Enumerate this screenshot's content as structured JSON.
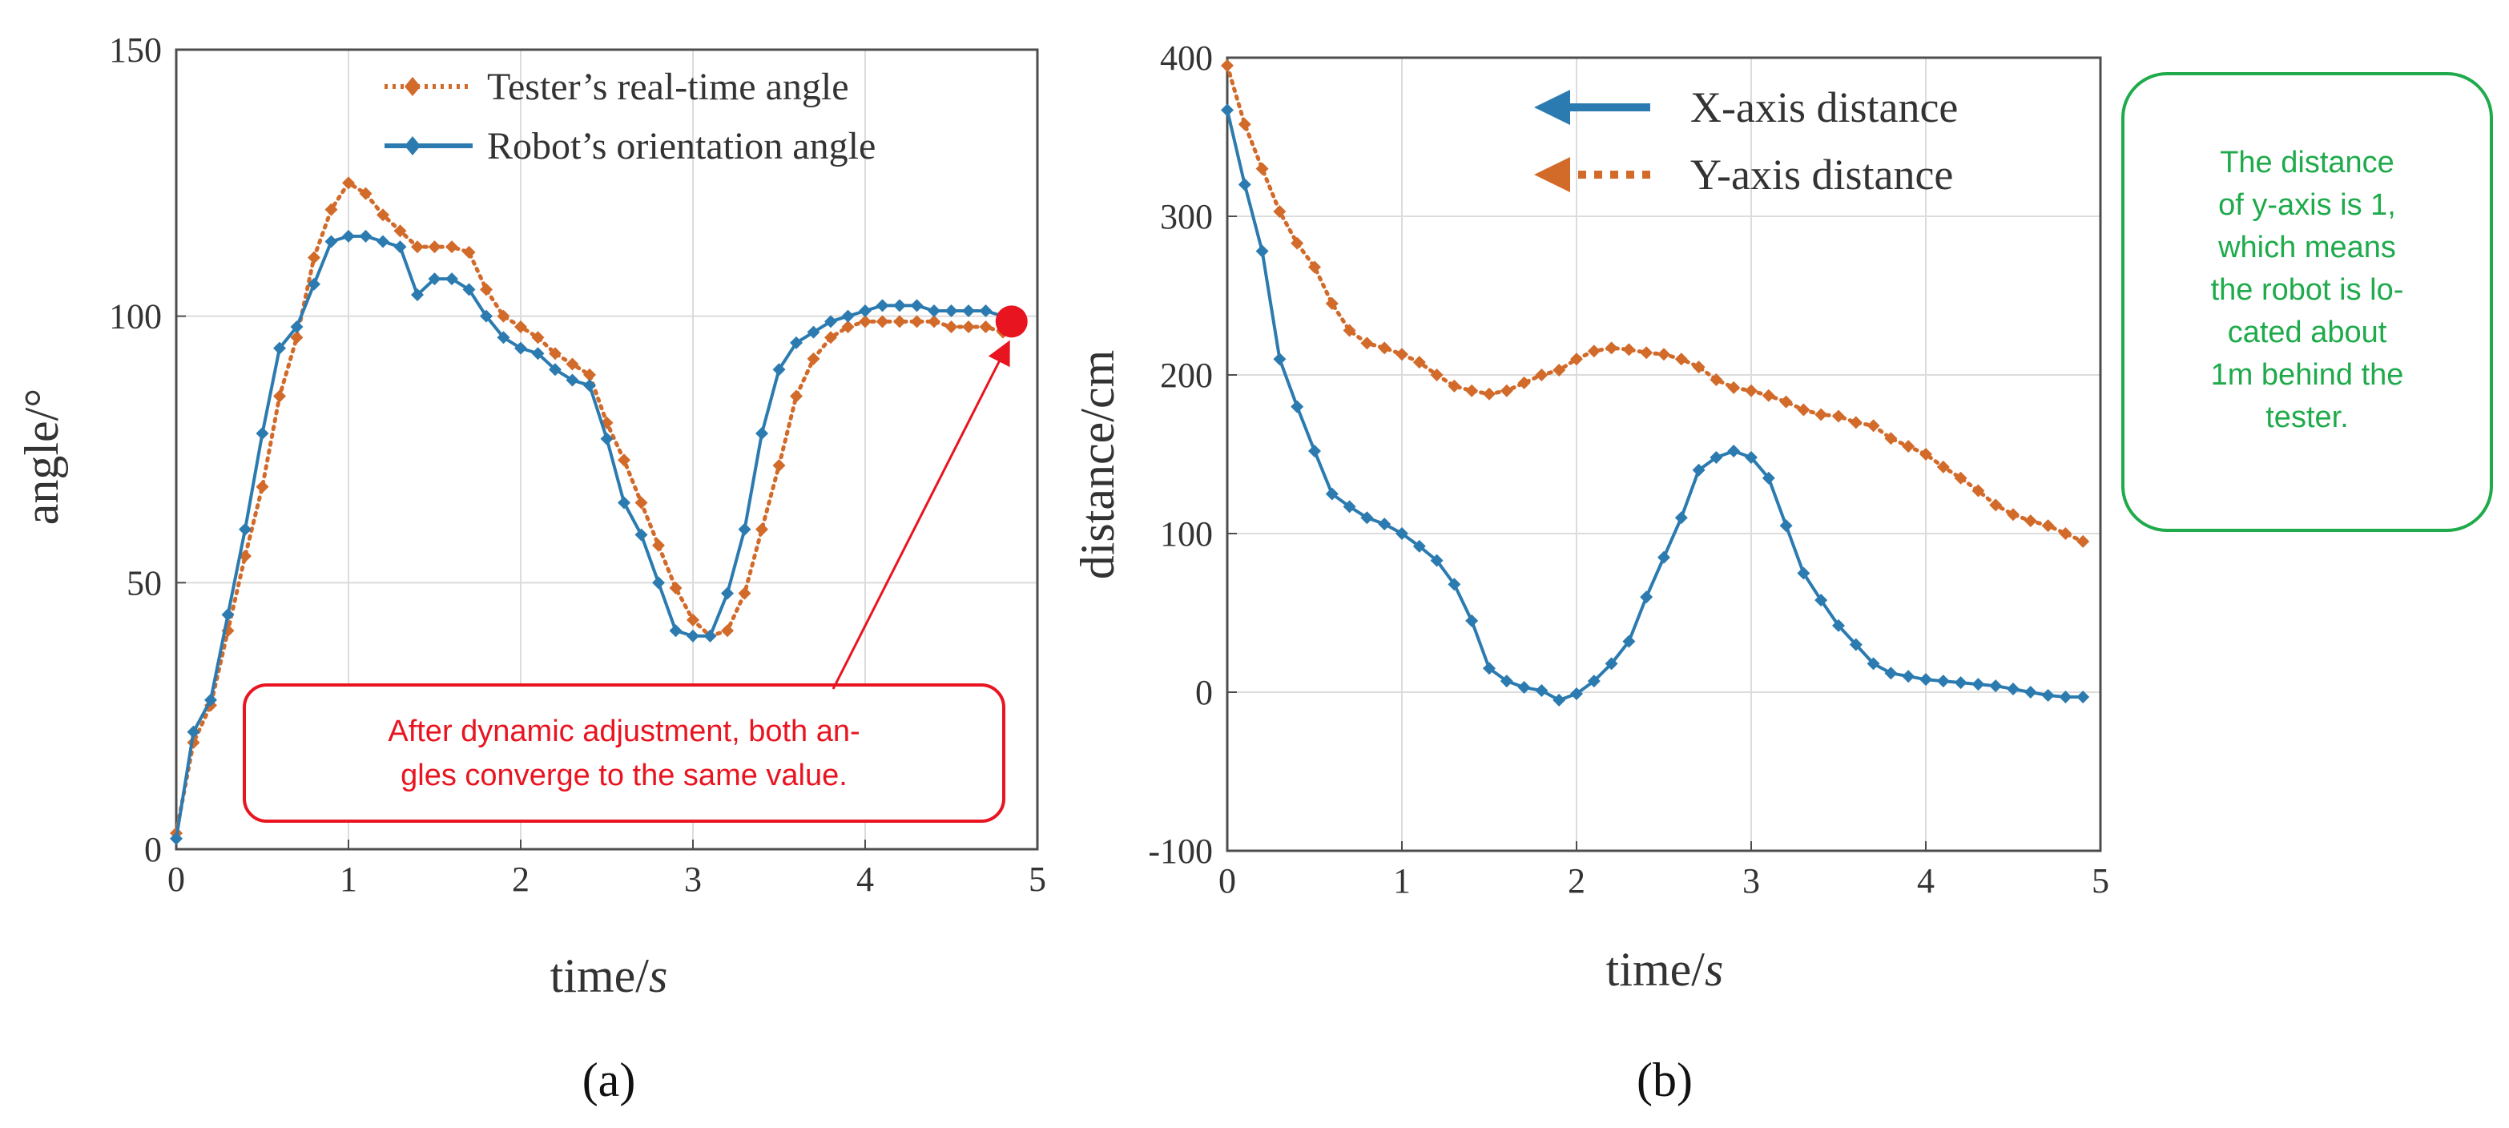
{
  "figure": {
    "panel_a_label": "(a)",
    "panel_b_label": "(b)",
    "annotation_a": {
      "lines": [
        "After dynamic adjustment, both an-",
        "gles converge to the same value."
      ],
      "color": "#e8141f"
    },
    "annotation_b": {
      "lines": [
        "The distance",
        "of y-axis is 1,",
        "which means",
        "the robot is lo-",
        "cated about",
        "1m behind the",
        "tester."
      ],
      "color": "#1faa4b"
    }
  },
  "chart_data": [
    {
      "type": "line",
      "title": "",
      "xlabel_main": "time/",
      "xlabel_italic": "s",
      "ylabel": "angle/°",
      "xlim": [
        0,
        5
      ],
      "ylim": [
        0,
        150
      ],
      "xticks": [
        "0",
        "1",
        "2",
        "3",
        "4",
        "5"
      ],
      "yticks": [
        "0",
        "50",
        "100",
        "150"
      ],
      "grid": true,
      "legend_position": "top-right",
      "series": [
        {
          "name": "Tester’s real-time angle",
          "style": "dotted",
          "marker": "diamond",
          "color": "#d26a2a",
          "x": [
            0,
            0.1,
            0.2,
            0.3,
            0.4,
            0.5,
            0.6,
            0.7,
            0.8,
            0.9,
            1.0,
            1.1,
            1.2,
            1.3,
            1.4,
            1.5,
            1.6,
            1.7,
            1.8,
            1.9,
            2.0,
            2.1,
            2.2,
            2.3,
            2.4,
            2.5,
            2.6,
            2.7,
            2.8,
            2.9,
            3.0,
            3.1,
            3.2,
            3.3,
            3.4,
            3.5,
            3.6,
            3.7,
            3.8,
            3.9,
            4.0,
            4.1,
            4.2,
            4.3,
            4.4,
            4.5,
            4.6,
            4.7,
            4.8
          ],
          "y": [
            3,
            20,
            27,
            41,
            55,
            68,
            85,
            96,
            111,
            120,
            125,
            123,
            119,
            116,
            113,
            113,
            113,
            112,
            105,
            100,
            98,
            96,
            93,
            91,
            89,
            80,
            73,
            65,
            57,
            49,
            43,
            40,
            41,
            48,
            60,
            72,
            85,
            92,
            96,
            98,
            99,
            99,
            99,
            99,
            99,
            98,
            98,
            98,
            97
          ]
        },
        {
          "name": "Robot’s orientation angle",
          "style": "solid",
          "marker": "diamond",
          "color": "#2b7bb0",
          "x": [
            0,
            0.1,
            0.2,
            0.3,
            0.4,
            0.5,
            0.6,
            0.7,
            0.8,
            0.9,
            1.0,
            1.1,
            1.2,
            1.3,
            1.4,
            1.5,
            1.6,
            1.7,
            1.8,
            1.9,
            2.0,
            2.1,
            2.2,
            2.3,
            2.4,
            2.5,
            2.6,
            2.7,
            2.8,
            2.9,
            3.0,
            3.1,
            3.2,
            3.3,
            3.4,
            3.5,
            3.6,
            3.7,
            3.8,
            3.9,
            4.0,
            4.1,
            4.2,
            4.3,
            4.4,
            4.5,
            4.6,
            4.7,
            4.8
          ],
          "y": [
            2,
            22,
            28,
            44,
            60,
            78,
            94,
            98,
            106,
            114,
            115,
            115,
            114,
            113,
            104,
            107,
            107,
            105,
            100,
            96,
            94,
            93,
            90,
            88,
            87,
            77,
            65,
            59,
            50,
            41,
            40,
            40,
            48,
            60,
            78,
            90,
            95,
            97,
            99,
            100,
            101,
            102,
            102,
            102,
            101,
            101,
            101,
            101,
            100
          ]
        }
      ],
      "highlight_point": {
        "x": 4.85,
        "y": 99,
        "color": "#e8141f"
      }
    },
    {
      "type": "line",
      "title": "",
      "xlabel_main": "time/",
      "xlabel_italic": "s",
      "ylabel": "distance/cm",
      "xlim": [
        0,
        5
      ],
      "ylim": [
        -100,
        400
      ],
      "xticks": [
        "0",
        "1",
        "2",
        "3",
        "4",
        "5"
      ],
      "yticks": [
        "-100",
        "0",
        "100",
        "200",
        "300",
        "400"
      ],
      "grid": true,
      "legend_position": "top-right",
      "series": [
        {
          "name": "X-axis distance",
          "style": "solid",
          "marker": "diamond",
          "color": "#2b7bb0",
          "x": [
            0,
            0.1,
            0.2,
            0.3,
            0.4,
            0.5,
            0.6,
            0.7,
            0.8,
            0.9,
            1.0,
            1.1,
            1.2,
            1.3,
            1.4,
            1.5,
            1.6,
            1.7,
            1.8,
            1.9,
            2.0,
            2.1,
            2.2,
            2.3,
            2.4,
            2.5,
            2.6,
            2.7,
            2.8,
            2.9,
            3.0,
            3.1,
            3.2,
            3.3,
            3.4,
            3.5,
            3.6,
            3.7,
            3.8,
            3.9,
            4.0,
            4.1,
            4.2,
            4.3,
            4.4,
            4.5,
            4.6,
            4.7,
            4.8,
            4.9
          ],
          "y": [
            367,
            320,
            278,
            210,
            180,
            152,
            125,
            117,
            110,
            106,
            100,
            92,
            83,
            68,
            45,
            15,
            7,
            3,
            1,
            -5,
            -1,
            7,
            18,
            32,
            60,
            85,
            110,
            140,
            148,
            152,
            148,
            135,
            105,
            75,
            58,
            42,
            30,
            18,
            12,
            10,
            8,
            7,
            6,
            5,
            4,
            2,
            0,
            -2,
            -3,
            -3
          ]
        },
        {
          "name": "Y-axis distance",
          "style": "dotted",
          "marker": "diamond",
          "color": "#d26a2a",
          "x": [
            0,
            0.1,
            0.2,
            0.3,
            0.4,
            0.5,
            0.6,
            0.7,
            0.8,
            0.9,
            1.0,
            1.1,
            1.2,
            1.3,
            1.4,
            1.5,
            1.6,
            1.7,
            1.8,
            1.9,
            2.0,
            2.1,
            2.2,
            2.3,
            2.4,
            2.5,
            2.6,
            2.7,
            2.8,
            2.9,
            3.0,
            3.1,
            3.2,
            3.3,
            3.4,
            3.5,
            3.6,
            3.7,
            3.8,
            3.9,
            4.0,
            4.1,
            4.2,
            4.3,
            4.4,
            4.5,
            4.6,
            4.7,
            4.8,
            4.9
          ],
          "y": [
            395,
            358,
            330,
            303,
            283,
            268,
            245,
            228,
            220,
            217,
            213,
            208,
            200,
            193,
            190,
            188,
            190,
            195,
            200,
            203,
            210,
            215,
            217,
            216,
            214,
            213,
            210,
            205,
            197,
            192,
            190,
            187,
            183,
            178,
            175,
            174,
            170,
            168,
            160,
            155,
            150,
            142,
            135,
            127,
            118,
            112,
            108,
            105,
            100,
            95
          ]
        }
      ]
    }
  ]
}
